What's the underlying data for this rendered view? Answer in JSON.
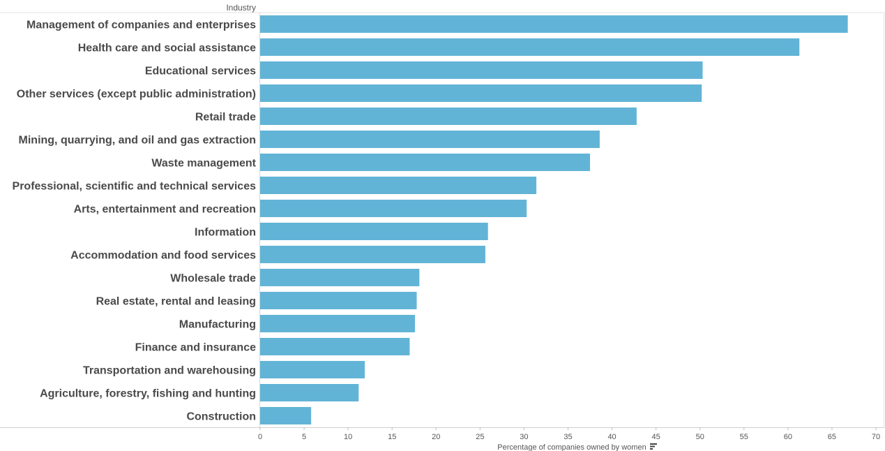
{
  "chart_data": {
    "type": "bar",
    "orientation": "horizontal",
    "row_header": "Industry",
    "xlabel": "Percentage of companies owned by women",
    "xlim": [
      0,
      70
    ],
    "xticks": [
      0,
      5,
      10,
      15,
      20,
      25,
      30,
      35,
      40,
      45,
      50,
      55,
      60,
      65,
      70
    ],
    "bar_color": "#62b4d6",
    "sort_icon": "sort-descending-icon",
    "categories": [
      "Management of companies and enterprises",
      "Health care and social assistance",
      "Educational services",
      "Other services (except public administration)",
      "Retail trade",
      "Mining, quarrying, and oil and gas extraction",
      "Waste management",
      "Professional, scientific and technical services",
      "Arts, entertainment and recreation",
      "Information",
      "Accommodation and food services",
      "Wholesale trade",
      "Real estate, rental and leasing",
      "Manufacturing",
      "Finance and insurance",
      "Transportation and warehousing",
      "Agriculture, forestry, fishing and hunting",
      "Construction"
    ],
    "values": [
      66.8,
      61.3,
      50.3,
      50.2,
      42.8,
      38.6,
      37.5,
      31.4,
      30.3,
      25.9,
      25.6,
      18.1,
      17.8,
      17.6,
      17.0,
      11.9,
      11.2,
      5.8
    ]
  }
}
